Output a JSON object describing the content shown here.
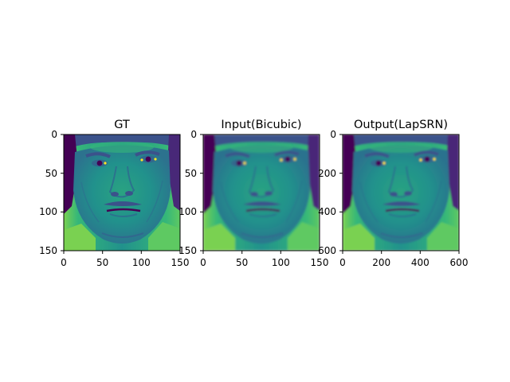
{
  "figure": {
    "panels": [
      {
        "title": "GT",
        "xticks": [
          "0",
          "50",
          "100",
          "150"
        ],
        "yticks": [
          "0",
          "50",
          "100",
          "150"
        ],
        "image": "face-grayscale-viridis-ground-truth"
      },
      {
        "title": "Input(Bicubic)",
        "xticks": [
          "0",
          "50",
          "100",
          "150"
        ],
        "yticks": [
          "0",
          "50",
          "100",
          "150"
        ],
        "image": "face-grayscale-viridis-bicubic-input"
      },
      {
        "title": "Output(LapSRN)",
        "xticks": [
          "0",
          "200",
          "400",
          "600"
        ],
        "yticks": [
          "0",
          "200",
          "400",
          "600"
        ],
        "image": "face-grayscale-viridis-lapsrn-output"
      }
    ],
    "colors": {
      "viridis_dark": "#440154",
      "viridis_blue": "#31688e",
      "viridis_teal": "#21918c",
      "viridis_green": "#5ec962",
      "viridis_yellow": "#fde725"
    }
  }
}
